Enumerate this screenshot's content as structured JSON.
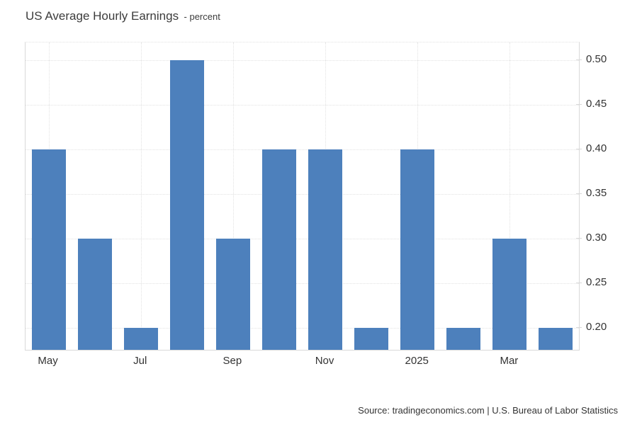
{
  "header": {
    "title": "US Average Hourly Earnings",
    "subtitle": "- percent"
  },
  "chart_data": {
    "type": "bar",
    "title": "US Average Hourly Earnings",
    "subtitle": "- percent",
    "values": [
      0.4,
      0.3,
      0.2,
      0.5,
      0.3,
      0.4,
      0.4,
      0.2,
      0.4,
      0.2,
      0.3,
      0.2
    ],
    "x_ticks": [
      {
        "index": 0,
        "label": "May"
      },
      {
        "index": 2,
        "label": "Jul"
      },
      {
        "index": 4,
        "label": "Sep"
      },
      {
        "index": 6,
        "label": "Nov"
      },
      {
        "index": 8,
        "label": "2025"
      },
      {
        "index": 10,
        "label": "Mar"
      }
    ],
    "y_ticks": [
      0.2,
      0.25,
      0.3,
      0.35,
      0.4,
      0.45,
      0.5
    ],
    "y_tick_labels": [
      "0.20",
      "0.25",
      "0.30",
      "0.35",
      "0.40",
      "0.45",
      "0.50"
    ],
    "ylim": [
      0.175,
      0.52
    ],
    "grid": true,
    "legend_position": "none",
    "bar_color": "#4d80bc"
  },
  "footer": {
    "source": "Source: tradingeconomics.com | U.S. Bureau of Labor Statistics"
  },
  "colors": {
    "bar": "#4d80bc",
    "border": "#d9d9d9",
    "gridline": "#e2e2e2",
    "text": "#333333",
    "title_text": "#3c3c3c",
    "background": "#ffffff"
  }
}
